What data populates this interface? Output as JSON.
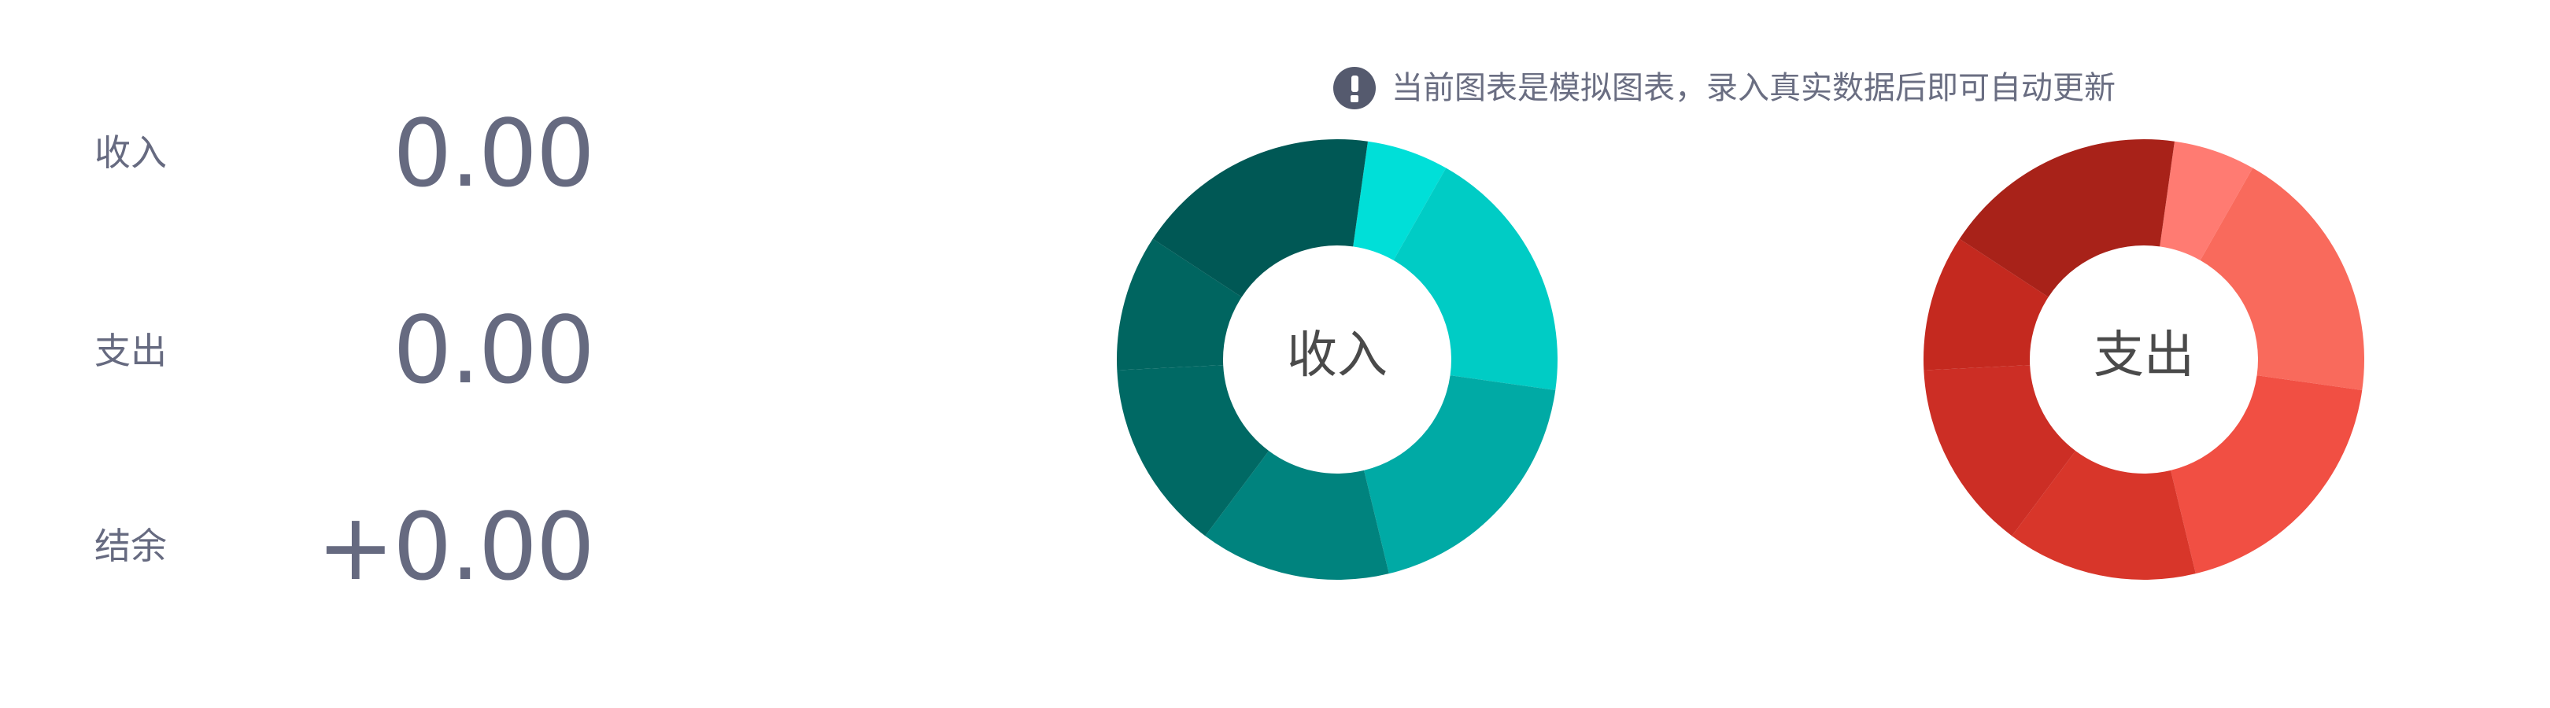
{
  "summary": {
    "rows": [
      {
        "label": "收入",
        "value": "0.00"
      },
      {
        "label": "支出",
        "value": "0.00"
      },
      {
        "label": "结余",
        "value": "+0.00"
      }
    ]
  },
  "notice": {
    "icon": "exclamation-circle-icon",
    "text": "当前图表是模拟图表，录入真实数据后即可自动更新"
  },
  "colors": {
    "text": "#666a80",
    "notice_icon": "#555a6e",
    "center_label": "#4a4a4a"
  },
  "chart_data": [
    {
      "type": "pie",
      "variant": "donut",
      "center_label": "收入",
      "values": [
        6,
        19,
        19,
        14,
        14,
        10,
        18
      ],
      "colors": [
        "#00dfd8",
        "#00ccc5",
        "#00aaa5",
        "#00837e",
        "#006964",
        "#006560",
        "#005855"
      ]
    },
    {
      "type": "pie",
      "variant": "donut",
      "center_label": "支出",
      "values": [
        6,
        19,
        19,
        14,
        14,
        10,
        18
      ],
      "colors": [
        "#ff7b72",
        "#f96a5c",
        "#f14f43",
        "#d8362a",
        "#cc2e25",
        "#c4291f",
        "#a82219"
      ]
    }
  ]
}
